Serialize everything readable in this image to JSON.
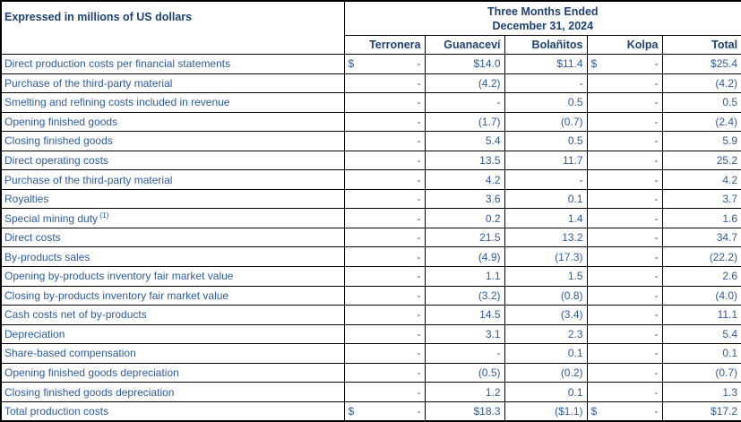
{
  "colors": {
    "header_text": "#1F4272",
    "body_text": "#2E5C99",
    "border": "#000000",
    "background": "#FFFFFF"
  },
  "table": {
    "caption": "Expressed in millions of US dollars",
    "period": {
      "line1": "Three Months Ended",
      "line2": "December 31, 2024"
    },
    "columns": [
      "Terronera",
      "Guanaceví",
      "Bolañitos",
      "Kolpa",
      "Total"
    ],
    "rows": [
      {
        "label": "Direct production costs per financial statements",
        "cells": [
          {
            "prefix": "$",
            "value": "-"
          },
          {
            "value": "$14.0"
          },
          {
            "value": "$11.4"
          },
          {
            "prefix": "$",
            "value": "-"
          },
          {
            "value": "$25.4"
          }
        ]
      },
      {
        "label": "Purchase of the third-party material",
        "cells": [
          {
            "value": "-"
          },
          {
            "value": "(4.2)"
          },
          {
            "value": "-"
          },
          {
            "value": "-"
          },
          {
            "value": "(4.2)"
          }
        ]
      },
      {
        "label": "Smelting and refining costs included in revenue",
        "cells": [
          {
            "value": "-"
          },
          {
            "value": "-"
          },
          {
            "value": "0.5"
          },
          {
            "value": "-"
          },
          {
            "value": "0.5"
          }
        ]
      },
      {
        "label": "Opening finished goods",
        "cells": [
          {
            "value": "-"
          },
          {
            "value": "(1.7)"
          },
          {
            "value": "(0.7)"
          },
          {
            "value": "-"
          },
          {
            "value": "(2.4)"
          }
        ]
      },
      {
        "label": "Closing finished goods",
        "cells": [
          {
            "value": "-"
          },
          {
            "value": "5.4"
          },
          {
            "value": "0.5"
          },
          {
            "value": "-"
          },
          {
            "value": "5.9"
          }
        ]
      },
      {
        "label": "Direct operating costs",
        "cells": [
          {
            "value": "-"
          },
          {
            "value": "13.5"
          },
          {
            "value": "11.7"
          },
          {
            "value": "-"
          },
          {
            "value": "25.2"
          }
        ]
      },
      {
        "label": "Purchase of the third-party material",
        "cells": [
          {
            "value": "-"
          },
          {
            "value": "4.2"
          },
          {
            "value": "-"
          },
          {
            "value": "-"
          },
          {
            "value": "4.2"
          }
        ]
      },
      {
        "label": "Royalties",
        "cells": [
          {
            "value": "-"
          },
          {
            "value": "3.6"
          },
          {
            "value": "0.1"
          },
          {
            "value": "-"
          },
          {
            "value": "3.7"
          }
        ]
      },
      {
        "label": "Special mining duty",
        "sup": "(1)",
        "cells": [
          {
            "value": "-"
          },
          {
            "value": "0.2"
          },
          {
            "value": "1.4"
          },
          {
            "value": "-"
          },
          {
            "value": "1.6"
          }
        ]
      },
      {
        "label": "Direct costs",
        "cells": [
          {
            "value": "-"
          },
          {
            "value": "21.5"
          },
          {
            "value": "13.2"
          },
          {
            "value": "-"
          },
          {
            "value": "34.7"
          }
        ]
      },
      {
        "label": "By-products sales",
        "cells": [
          {
            "value": "-"
          },
          {
            "value": "(4.9)"
          },
          {
            "value": "(17.3)"
          },
          {
            "value": "-"
          },
          {
            "value": "(22.2)"
          }
        ]
      },
      {
        "label": "Opening by-products inventory fair market value",
        "cells": [
          {
            "value": "-"
          },
          {
            "value": "1.1"
          },
          {
            "value": "1.5"
          },
          {
            "value": "-"
          },
          {
            "value": "2.6"
          }
        ]
      },
      {
        "label": "Closing by-products inventory fair market value",
        "cells": [
          {
            "value": "-"
          },
          {
            "value": "(3.2)"
          },
          {
            "value": "(0.8)"
          },
          {
            "value": "-"
          },
          {
            "value": "(4.0)"
          }
        ]
      },
      {
        "label": "Cash costs net of by-products",
        "cells": [
          {
            "value": "-"
          },
          {
            "value": "14.5"
          },
          {
            "value": "(3.4)"
          },
          {
            "value": "-"
          },
          {
            "value": "11.1"
          }
        ]
      },
      {
        "label": "Depreciation",
        "cells": [
          {
            "value": "-"
          },
          {
            "value": "3.1"
          },
          {
            "value": "2.3"
          },
          {
            "value": "-"
          },
          {
            "value": "5.4"
          }
        ]
      },
      {
        "label": "Share-based compensation",
        "cells": [
          {
            "value": "-"
          },
          {
            "value": "-"
          },
          {
            "value": "0.1"
          },
          {
            "value": "-"
          },
          {
            "value": "0.1"
          }
        ]
      },
      {
        "label": "Opening finished goods depreciation",
        "cells": [
          {
            "value": "-"
          },
          {
            "value": "(0.5)"
          },
          {
            "value": "(0.2)"
          },
          {
            "value": "-"
          },
          {
            "value": "(0.7)"
          }
        ]
      },
      {
        "label": "Closing finished goods depreciation",
        "cells": [
          {
            "value": "-"
          },
          {
            "value": "1.2"
          },
          {
            "value": "0.1"
          },
          {
            "value": "-"
          },
          {
            "value": "1.3"
          }
        ]
      },
      {
        "label": "Total production costs",
        "cells": [
          {
            "prefix": "$",
            "value": "-"
          },
          {
            "value": "$18.3"
          },
          {
            "value": "($1.1)"
          },
          {
            "prefix": "$",
            "value": "-"
          },
          {
            "value": "$17.2"
          }
        ]
      }
    ]
  }
}
